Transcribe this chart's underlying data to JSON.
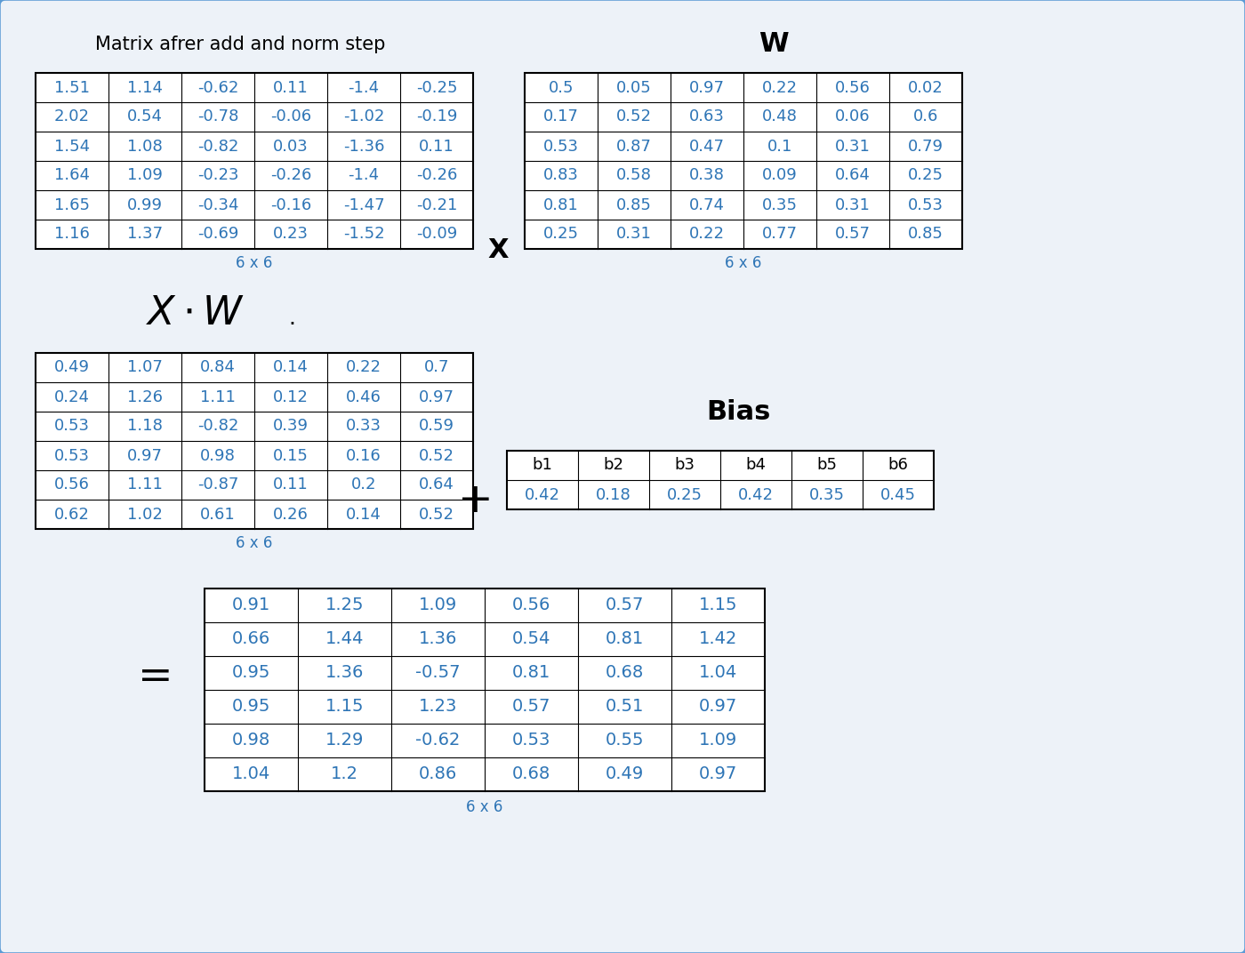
{
  "bg_color": "#edf2f8",
  "border_color": "#5b9bd5",
  "text_color_blue": "#2e75b6",
  "text_color_black": "#000000",
  "title1": "Matrix afrer add and norm step",
  "matrix_X": [
    [
      1.51,
      1.14,
      -0.62,
      0.11,
      -1.4,
      -0.25
    ],
    [
      2.02,
      0.54,
      -0.78,
      -0.06,
      -1.02,
      -0.19
    ],
    [
      1.54,
      1.08,
      -0.82,
      0.03,
      -1.36,
      0.11
    ],
    [
      1.64,
      1.09,
      -0.23,
      -0.26,
      -1.4,
      -0.26
    ],
    [
      1.65,
      0.99,
      -0.34,
      -0.16,
      -1.47,
      -0.21
    ],
    [
      1.16,
      1.37,
      -0.69,
      0.23,
      -1.52,
      -0.09
    ]
  ],
  "title_W": "W",
  "matrix_W": [
    [
      0.5,
      0.05,
      0.97,
      0.22,
      0.56,
      0.02
    ],
    [
      0.17,
      0.52,
      0.63,
      0.48,
      0.06,
      0.6
    ],
    [
      0.53,
      0.87,
      0.47,
      0.1,
      0.31,
      0.79
    ],
    [
      0.83,
      0.58,
      0.38,
      0.09,
      0.64,
      0.25
    ],
    [
      0.81,
      0.85,
      0.74,
      0.35,
      0.31,
      0.53
    ],
    [
      0.25,
      0.31,
      0.22,
      0.77,
      0.57,
      0.85
    ]
  ],
  "matrix_XW": [
    [
      0.49,
      1.07,
      0.84,
      0.14,
      0.22,
      0.7
    ],
    [
      0.24,
      1.26,
      1.11,
      0.12,
      0.46,
      0.97
    ],
    [
      0.53,
      1.18,
      -0.82,
      0.39,
      0.33,
      0.59
    ],
    [
      0.53,
      0.97,
      0.98,
      0.15,
      0.16,
      0.52
    ],
    [
      0.56,
      1.11,
      -0.87,
      0.11,
      0.2,
      0.64
    ],
    [
      0.62,
      1.02,
      0.61,
      0.26,
      0.14,
      0.52
    ]
  ],
  "title_bias": "Bias",
  "bias_headers": [
    "b1",
    "b2",
    "b3",
    "b4",
    "b5",
    "b6"
  ],
  "bias_values": [
    0.42,
    0.18,
    0.25,
    0.42,
    0.35,
    0.45
  ],
  "matrix_result": [
    [
      0.91,
      1.25,
      1.09,
      0.56,
      0.57,
      1.15
    ],
    [
      0.66,
      1.44,
      1.36,
      0.54,
      0.81,
      1.42
    ],
    [
      0.95,
      1.36,
      -0.57,
      0.81,
      0.68,
      1.04
    ],
    [
      0.95,
      1.15,
      1.23,
      0.57,
      0.51,
      0.97
    ],
    [
      0.98,
      1.29,
      -0.62,
      0.53,
      0.55,
      1.09
    ],
    [
      1.04,
      1.2,
      0.86,
      0.68,
      0.49,
      0.97
    ]
  ],
  "size6x6": "6 x 6"
}
